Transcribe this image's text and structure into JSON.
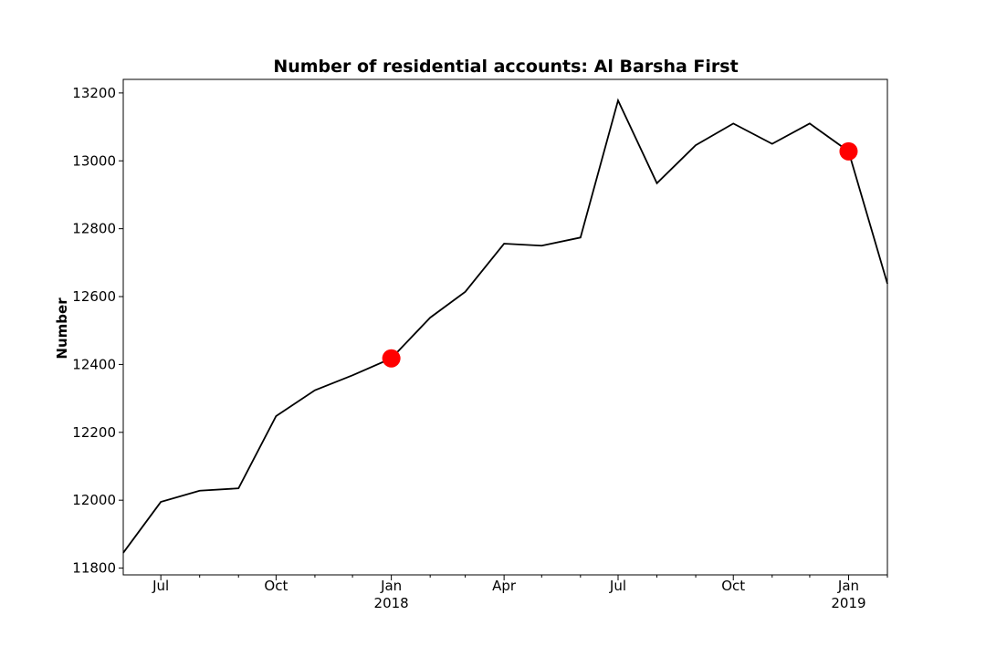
{
  "chart_data": {
    "type": "line",
    "title": "Number of residential accounts: Al Barsha First",
    "xlabel": "",
    "ylabel": "Number",
    "ylim": [
      11780,
      13240
    ],
    "xlim": [
      "2017-06-01",
      "2019-02-01"
    ],
    "yticks": [
      11800,
      12000,
      12200,
      12400,
      12600,
      12800,
      13000,
      13200
    ],
    "xticks": [
      {
        "date": "2017-07-01",
        "label": "Jul",
        "sublabel": ""
      },
      {
        "date": "2017-10-01",
        "label": "Oct",
        "sublabel": ""
      },
      {
        "date": "2018-01-01",
        "label": "Jan",
        "sublabel": "2018"
      },
      {
        "date": "2018-04-01",
        "label": "Apr",
        "sublabel": ""
      },
      {
        "date": "2018-07-01",
        "label": "Jul",
        "sublabel": ""
      },
      {
        "date": "2018-10-01",
        "label": "Oct",
        "sublabel": ""
      },
      {
        "date": "2019-01-01",
        "label": "Jan",
        "sublabel": "2019"
      }
    ],
    "minor_xticks": [
      "2017-08-01",
      "2017-09-01",
      "2017-11-01",
      "2017-12-01",
      "2018-02-01",
      "2018-03-01",
      "2018-05-01",
      "2018-06-01",
      "2018-08-01",
      "2018-09-01",
      "2018-11-01",
      "2018-12-01",
      "2019-02-01"
    ],
    "grid": false,
    "series": [
      {
        "name": "",
        "color": "#000000",
        "x": [
          "2017-06-01",
          "2017-07-01",
          "2017-08-01",
          "2017-09-01",
          "2017-10-01",
          "2017-11-01",
          "2017-12-01",
          "2018-01-01",
          "2018-02-01",
          "2018-03-01",
          "2018-04-01",
          "2018-05-01",
          "2018-06-01",
          "2018-07-01",
          "2018-08-01",
          "2018-09-01",
          "2018-10-01",
          "2018-11-01",
          "2018-12-01",
          "2019-01-01",
          "2019-02-01"
        ],
        "y": [
          11845,
          11995,
          12028,
          12035,
          12248,
          12324,
          12368,
          12418,
          12538,
          12614,
          12756,
          12750,
          12774,
          13178,
          12934,
          13046,
          13110,
          13050,
          13110,
          13028,
          12638
        ]
      }
    ],
    "markers": [
      {
        "x": "2018-01-01",
        "y": 12418,
        "color": "#ff0000"
      },
      {
        "x": "2019-01-01",
        "y": 13028,
        "color": "#ff0000"
      }
    ]
  }
}
